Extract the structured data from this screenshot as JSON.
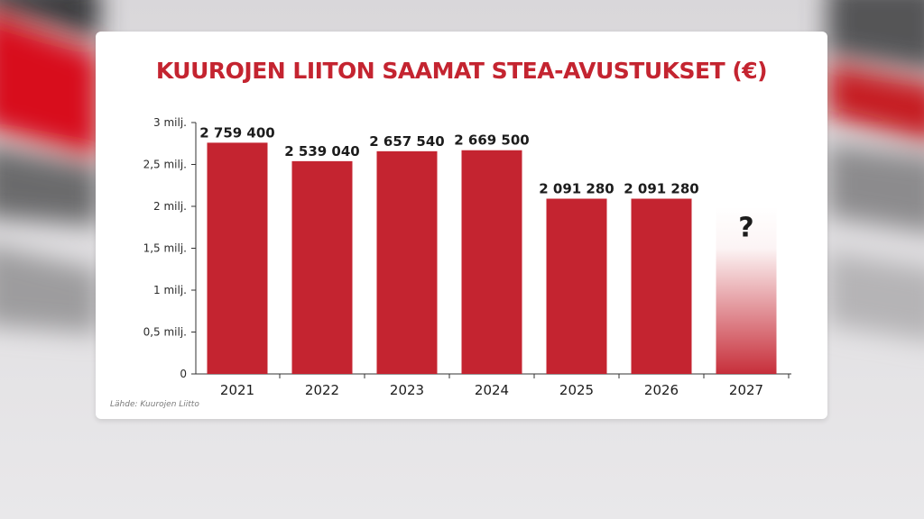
{
  "chart_data": {
    "type": "bar",
    "title": "KUUROJEN LIITON SAAMAT STEA-AVUSTUKSET (€)",
    "categories": [
      "2021",
      "2022",
      "2023",
      "2024",
      "2025",
      "2026",
      "2027"
    ],
    "values": [
      2759400,
      2539040,
      2657540,
      2669500,
      2091280,
      2091280,
      null
    ],
    "data_labels": [
      "2 759 400",
      "2 539 040",
      "2 657 540",
      "2 669 500",
      "2 091 280",
      "2 091 280",
      "?"
    ],
    "ylim": [
      0,
      3000000
    ],
    "yticks": [
      {
        "value": 0,
        "label": "0"
      },
      {
        "value": 500000,
        "label": "0,5 milj."
      },
      {
        "value": 1000000,
        "label": "1 milj."
      },
      {
        "value": 1500000,
        "label": "1,5 milj."
      },
      {
        "value": 2000000,
        "label": "2 milj."
      },
      {
        "value": 2500000,
        "label": "2,5 milj."
      },
      {
        "value": 3000000,
        "label": "3 milj."
      }
    ],
    "grid": false,
    "bar_color": "#c42430",
    "source": "Lähde: Kuurojen Liitto"
  }
}
